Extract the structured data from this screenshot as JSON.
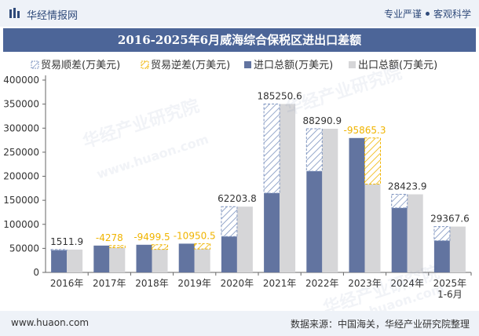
{
  "header": {
    "brand": "华经情报网",
    "tag1": "专业严谨",
    "tag2": "客观科学"
  },
  "title": "2016-2025年6月威海综合保税区进出口差额",
  "legend": [
    {
      "label": "贸易顺差(万美元)",
      "key": "surplus"
    },
    {
      "label": "贸易逆差(万美元)",
      "key": "deficit"
    },
    {
      "label": "进口总额(万美元)",
      "key": "import"
    },
    {
      "label": "出口总额(万美元)",
      "key": "export"
    }
  ],
  "colors": {
    "import": "#6274a0",
    "export": "#d6d6d8",
    "surplus_stroke": "#7f95c0",
    "deficit_stroke": "#f0b400",
    "label_surplus": "#333333",
    "label_deficit": "#f0b400",
    "title_bg": "#4c6598"
  },
  "chart_data": {
    "type": "bar",
    "categories": [
      "2016年",
      "2017年",
      "2018年",
      "2019年",
      "2020年",
      "2021年",
      "2022年",
      "2023年",
      "2024年",
      "2025年\n1-6月"
    ],
    "series": [
      {
        "name": "进口总额(万美元)",
        "values": [
          46000,
          55800,
          57500,
          59800,
          74600,
          165000,
          210500,
          279500,
          134000,
          66000
        ]
      },
      {
        "name": "出口总额(万美元)",
        "values": [
          47500,
          51500,
          48000,
          48850,
          136800,
          350250,
          298790,
          183635,
          162424,
          95368
        ]
      }
    ],
    "balance": [
      1511.9,
      -4278,
      -9499.5,
      -10950.5,
      62203.8,
      185250.6,
      88290.9,
      -95865.3,
      28423.9,
      29367.6
    ],
    "balance_labels": [
      "1511.9",
      "-4278",
      "-9499.5",
      "-10950.5",
      "62203.8",
      "185250.6",
      "88290.9",
      "-95865.3",
      "28423.9",
      "29367.6"
    ],
    "yticks": [
      "0",
      "50000",
      "100000",
      "150000",
      "200000",
      "250000",
      "300000",
      "350000",
      "400000"
    ],
    "ylim": [
      0,
      400000
    ]
  },
  "watermarks": [
    "华经产业研究院",
    "www.huaon.com"
  ],
  "footer": {
    "website": "www.huaon.com",
    "source": "数据来源：中国海关，华经产业研究院整理"
  }
}
